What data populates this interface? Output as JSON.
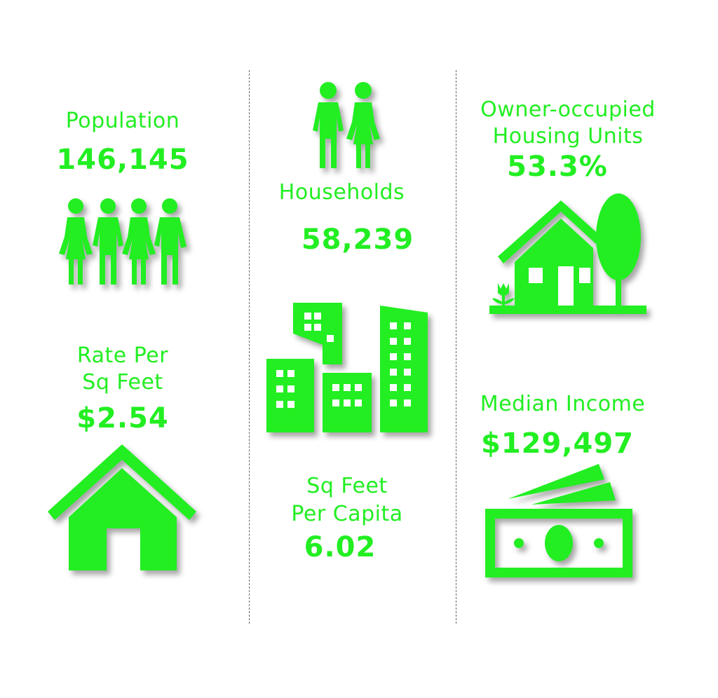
{
  "colors": {
    "accent": "#22ee22",
    "divider": "#666666",
    "background": "#ffffff"
  },
  "stats": {
    "population": {
      "label": "Population",
      "value": "146,145",
      "icon": "people-group-icon"
    },
    "rate": {
      "label_line1": "Rate Per",
      "label_line2": "Sq Feet",
      "value": "$2.54",
      "icon": "house-icon"
    },
    "households": {
      "label": "Households",
      "value": "58,239",
      "icon": "couple-icon"
    },
    "sqft_per_capita": {
      "label_line1": "Sq Feet",
      "label_line2": "Per Capita",
      "value": "6.02",
      "icon": "buildings-icon"
    },
    "owner_occupied": {
      "label_line1": "Owner-occupied",
      "label_line2": "Housing Units",
      "value": "53.3%",
      "icon": "house-with-tree-icon"
    },
    "median_income": {
      "label": "Median Income",
      "value": "$129,497",
      "icon": "cash-icon"
    }
  }
}
